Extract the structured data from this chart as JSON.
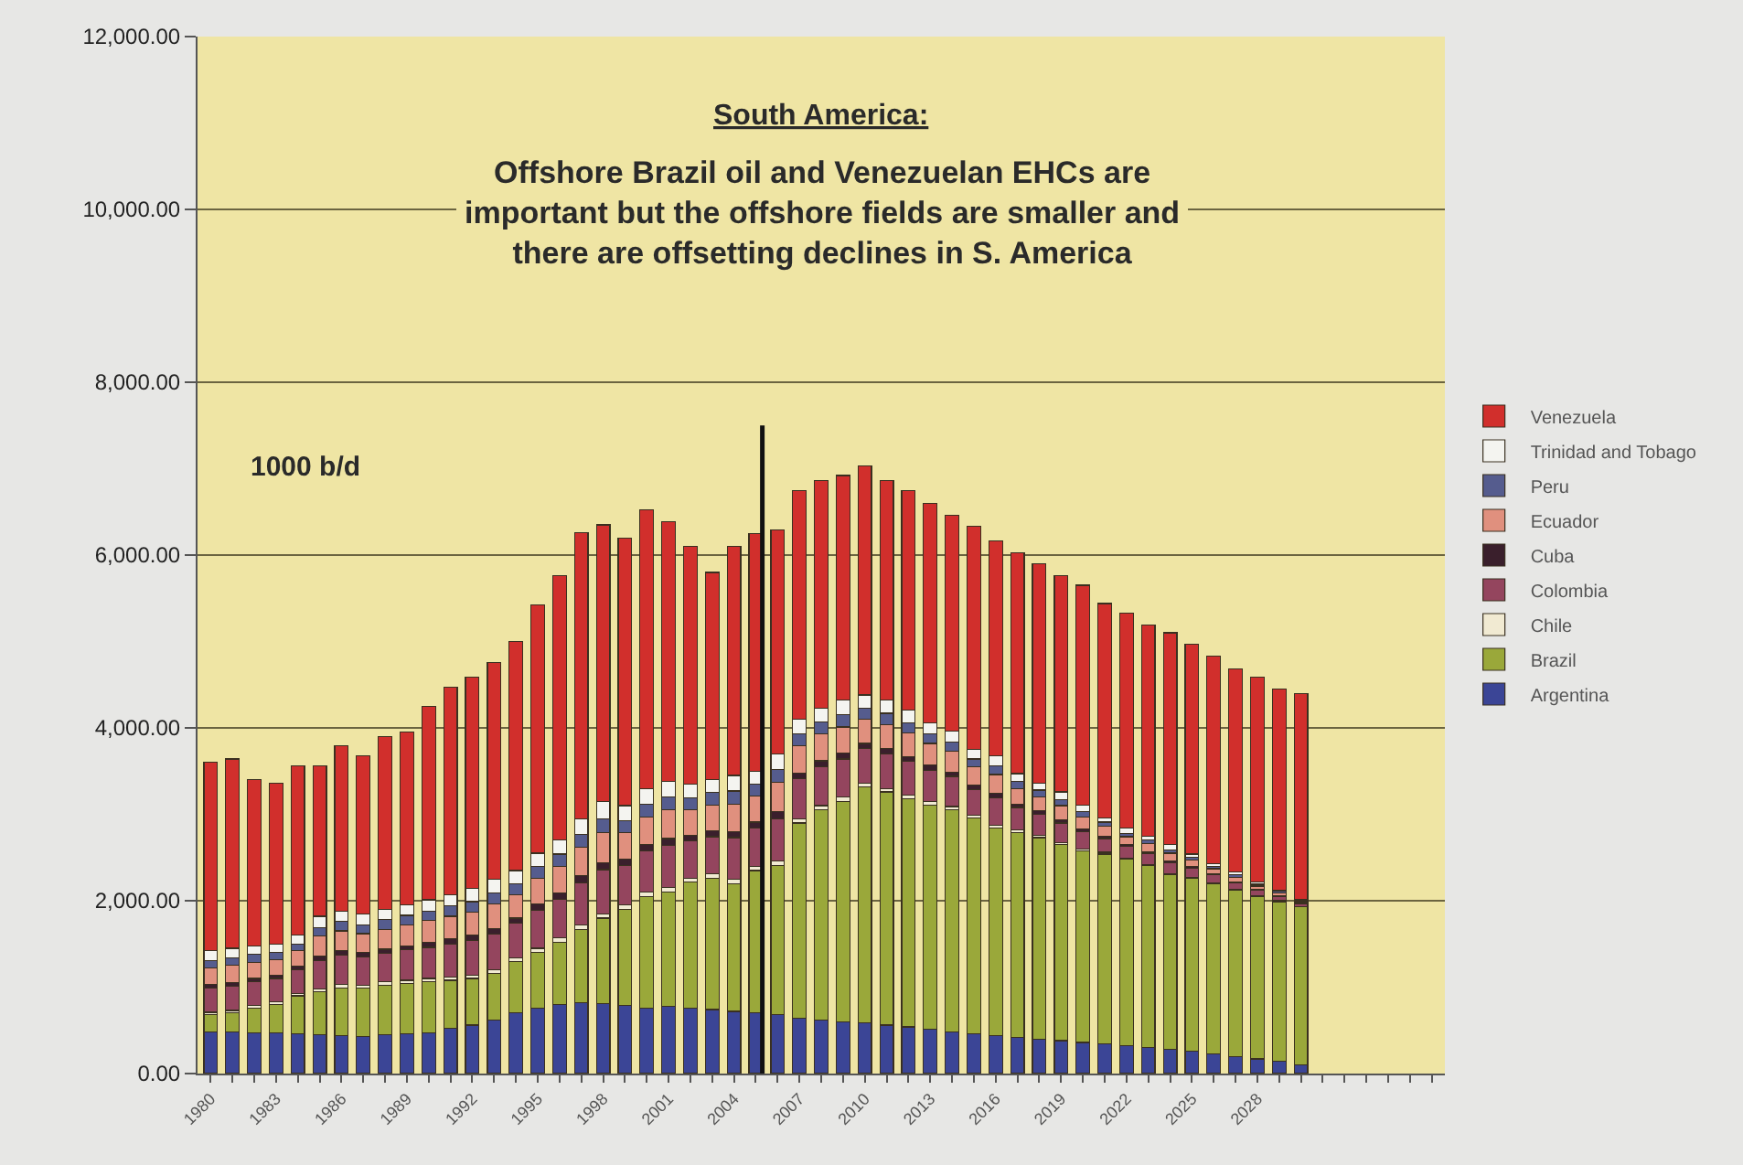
{
  "chart_data": {
    "type": "bar",
    "stacked": true,
    "title": "South America:",
    "subtitle": "Offshore Brazil oil and Venezuelan EHCs are\nimportant but the offshore fields are smaller and\nthere are offsetting declines in S. America",
    "ylabel": "1000 b/d",
    "x": [
      1980,
      1981,
      1982,
      1983,
      1984,
      1985,
      1986,
      1987,
      1988,
      1989,
      1990,
      1991,
      1992,
      1993,
      1994,
      1995,
      1996,
      1997,
      1998,
      1999,
      2000,
      2001,
      2002,
      2003,
      2004,
      2005,
      2006,
      2007,
      2008,
      2009,
      2010,
      2011,
      2012,
      2013,
      2014,
      2015,
      2016,
      2017,
      2018,
      2019,
      2020,
      2021,
      2022,
      2023,
      2024,
      2025,
      2026,
      2027,
      2028,
      2029,
      2030
    ],
    "series": [
      {
        "name": "Argentina",
        "color": "#3b4596",
        "values": [
          480,
          480,
          470,
          470,
          460,
          450,
          440,
          430,
          450,
          460,
          470,
          520,
          560,
          620,
          700,
          760,
          800,
          820,
          810,
          790,
          760,
          780,
          760,
          740,
          720,
          700,
          680,
          640,
          620,
          600,
          590,
          560,
          540,
          510,
          480,
          460,
          440,
          420,
          400,
          380,
          360,
          340,
          320,
          300,
          280,
          260,
          230,
          200,
          170,
          140,
          100
        ]
      },
      {
        "name": "Brazil",
        "color": "#9aa83a",
        "values": [
          200,
          220,
          290,
          330,
          440,
          500,
          550,
          560,
          570,
          580,
          590,
          560,
          540,
          540,
          600,
          640,
          720,
          850,
          990,
          1110,
          1290,
          1320,
          1460,
          1520,
          1480,
          1650,
          1730,
          2260,
          2430,
          2550,
          2730,
          2700,
          2640,
          2600,
          2570,
          2500,
          2400,
          2370,
          2330,
          2270,
          2220,
          2200,
          2160,
          2110,
          2020,
          2000,
          1970,
          1920,
          1880,
          1850,
          1830
        ]
      },
      {
        "name": "Chile",
        "color": "#f1ead2",
        "values": [
          30,
          30,
          30,
          30,
          30,
          30,
          40,
          30,
          40,
          40,
          40,
          40,
          40,
          40,
          40,
          50,
          50,
          50,
          50,
          50,
          50,
          50,
          40,
          50,
          50,
          50,
          50,
          50,
          50,
          50,
          40,
          40,
          40,
          40,
          40,
          30,
          30,
          30,
          30,
          20,
          20,
          20,
          10,
          10,
          10,
          10,
          10,
          10,
          10,
          10,
          0
        ]
      },
      {
        "name": "Colombia",
        "color": "#94455e",
        "values": [
          280,
          280,
          270,
          270,
          270,
          330,
          340,
          330,
          330,
          350,
          360,
          380,
          400,
          410,
          400,
          440,
          450,
          490,
          510,
          460,
          480,
          490,
          430,
          430,
          480,
          440,
          490,
          460,
          450,
          440,
          400,
          400,
          390,
          360,
          350,
          300,
          320,
          260,
          240,
          230,
          200,
          160,
          140,
          130,
          130,
          110,
          90,
          80,
          60,
          50,
          30
        ]
      },
      {
        "name": "Cuba",
        "color": "#3a1f2c",
        "values": [
          40,
          40,
          40,
          40,
          40,
          50,
          50,
          50,
          50,
          50,
          60,
          60,
          60,
          70,
          60,
          70,
          70,
          80,
          80,
          70,
          70,
          80,
          70,
          70,
          70,
          70,
          80,
          70,
          70,
          70,
          60,
          60,
          60,
          60,
          50,
          50,
          50,
          40,
          40,
          40,
          30,
          30,
          20,
          20,
          20,
          20,
          10,
          10,
          10,
          10,
          10
        ]
      },
      {
        "name": "Ecuador",
        "color": "#e0907e",
        "values": [
          190,
          200,
          190,
          180,
          180,
          230,
          230,
          220,
          230,
          240,
          250,
          260,
          270,
          280,
          270,
          300,
          310,
          330,
          350,
          310,
          320,
          330,
          290,
          300,
          320,
          300,
          340,
          310,
          310,
          300,
          280,
          280,
          270,
          250,
          240,
          210,
          220,
          180,
          160,
          160,
          140,
          110,
          90,
          90,
          90,
          70,
          60,
          50,
          40,
          30,
          20
        ]
      },
      {
        "name": "Peru",
        "color": "#555c8e",
        "values": [
          90,
          90,
          90,
          80,
          80,
          100,
          110,
          100,
          110,
          110,
          110,
          120,
          120,
          130,
          130,
          140,
          140,
          150,
          160,
          140,
          150,
          150,
          140,
          140,
          150,
          140,
          150,
          140,
          140,
          140,
          130,
          130,
          120,
          110,
          110,
          90,
          100,
          80,
          80,
          70,
          60,
          50,
          40,
          40,
          40,
          30,
          30,
          30,
          20,
          20,
          10
        ]
      },
      {
        "name": "Trinidad and Tobago",
        "color": "#f4f4f0",
        "values": [
          110,
          110,
          100,
          100,
          100,
          130,
          120,
          130,
          120,
          120,
          130,
          130,
          150,
          160,
          150,
          150,
          160,
          180,
          200,
          170,
          180,
          180,
          160,
          150,
          180,
          150,
          180,
          170,
          160,
          170,
          150,
          150,
          150,
          130,
          120,
          110,
          120,
          90,
          80,
          90,
          80,
          50,
          60,
          50,
          60,
          40,
          30,
          30,
          30,
          10,
          10
        ]
      },
      {
        "name": "Venezuela",
        "color": "#d12f2c",
        "values": [
          2180,
          2190,
          1920,
          1860,
          1960,
          1740,
          1910,
          1830,
          2000,
          2000,
          2240,
          2400,
          2450,
          2510,
          2650,
          2870,
          3060,
          3310,
          3200,
          3100,
          3220,
          3010,
          2750,
          2400,
          2650,
          2750,
          2590,
          2650,
          2630,
          2600,
          2650,
          2540,
          2540,
          2540,
          2500,
          2580,
          2480,
          2560,
          2540,
          2500,
          2540,
          2480,
          2490,
          2440,
          2450,
          2430,
          2400,
          2350,
          2370,
          2330,
          2390
        ]
      },
      {
        "type": "line",
        "color": "#111111",
        "x": [
          2005.3,
          2005.3
        ],
        "values": [
          0,
          7500
        ]
      }
    ],
    "xlim": [
      1979.4,
      2036.6
    ],
    "xticks": [
      {
        "value": 1980,
        "label": "1980"
      },
      {
        "value": 1981,
        "label": null
      },
      {
        "value": 1982,
        "label": null
      },
      {
        "value": 1983,
        "label": "1983"
      },
      {
        "value": 1984,
        "label": null
      },
      {
        "value": 1985,
        "label": null
      },
      {
        "value": 1986,
        "label": "1986"
      },
      {
        "value": 1987,
        "label": null
      },
      {
        "value": 1988,
        "label": null
      },
      {
        "value": 1989,
        "label": "1989"
      },
      {
        "value": 1990,
        "label": null
      },
      {
        "value": 1991,
        "label": null
      },
      {
        "value": 1992,
        "label": "1992"
      },
      {
        "value": 1993,
        "label": null
      },
      {
        "value": 1994,
        "label": null
      },
      {
        "value": 1995,
        "label": "1995"
      },
      {
        "value": 1996,
        "label": null
      },
      {
        "value": 1997,
        "label": null
      },
      {
        "value": 1998,
        "label": "1998"
      },
      {
        "value": 1999,
        "label": null
      },
      {
        "value": 2000,
        "label": null
      },
      {
        "value": 2001,
        "label": "2001"
      },
      {
        "value": 2002,
        "label": null
      },
      {
        "value": 2003,
        "label": null
      },
      {
        "value": 2004,
        "label": "2004"
      },
      {
        "value": 2005,
        "label": null
      },
      {
        "value": 2006,
        "label": null
      },
      {
        "value": 2007,
        "label": "2007"
      },
      {
        "value": 2008,
        "label": null
      },
      {
        "value": 2009,
        "label": null
      },
      {
        "value": 2010,
        "label": "2010"
      },
      {
        "value": 2011,
        "label": null
      },
      {
        "value": 2012,
        "label": null
      },
      {
        "value": 2013,
        "label": "2013"
      },
      {
        "value": 2014,
        "label": null
      },
      {
        "value": 2015,
        "label": null
      },
      {
        "value": 2016,
        "label": "2016"
      },
      {
        "value": 2017,
        "label": null
      },
      {
        "value": 2018,
        "label": null
      },
      {
        "value": 2019,
        "label": "2019"
      },
      {
        "value": 2020,
        "label": null
      },
      {
        "value": 2021,
        "label": null
      },
      {
        "value": 2022,
        "label": "2022"
      },
      {
        "value": 2023,
        "label": null
      },
      {
        "value": 2024,
        "label": null
      },
      {
        "value": 2025,
        "label": "2025"
      },
      {
        "value": 2026,
        "label": null
      },
      {
        "value": 2027,
        "label": null
      },
      {
        "value": 2028,
        "label": "2028"
      },
      {
        "value": 2029,
        "label": null
      },
      {
        "value": 2030,
        "label": null
      },
      {
        "value": 2031,
        "label": null
      },
      {
        "value": 2032,
        "label": null
      },
      {
        "value": 2033,
        "label": null
      },
      {
        "value": 2034,
        "label": null
      },
      {
        "value": 2035,
        "label": null
      },
      {
        "value": 2036,
        "label": null
      }
    ],
    "ylim": [
      0,
      12000
    ],
    "yticks": [
      {
        "value": 0,
        "label": "0.00"
      },
      {
        "value": 2000,
        "label": "2,000.00"
      },
      {
        "value": 4000,
        "label": "4,000.00"
      },
      {
        "value": 6000,
        "label": "6,000.00"
      },
      {
        "value": 8000,
        "label": "8,000.00"
      },
      {
        "value": 10000,
        "label": "10,000.00"
      },
      {
        "value": 12000,
        "label": "12,000.00"
      }
    ],
    "grid": "y",
    "legend": "right"
  }
}
